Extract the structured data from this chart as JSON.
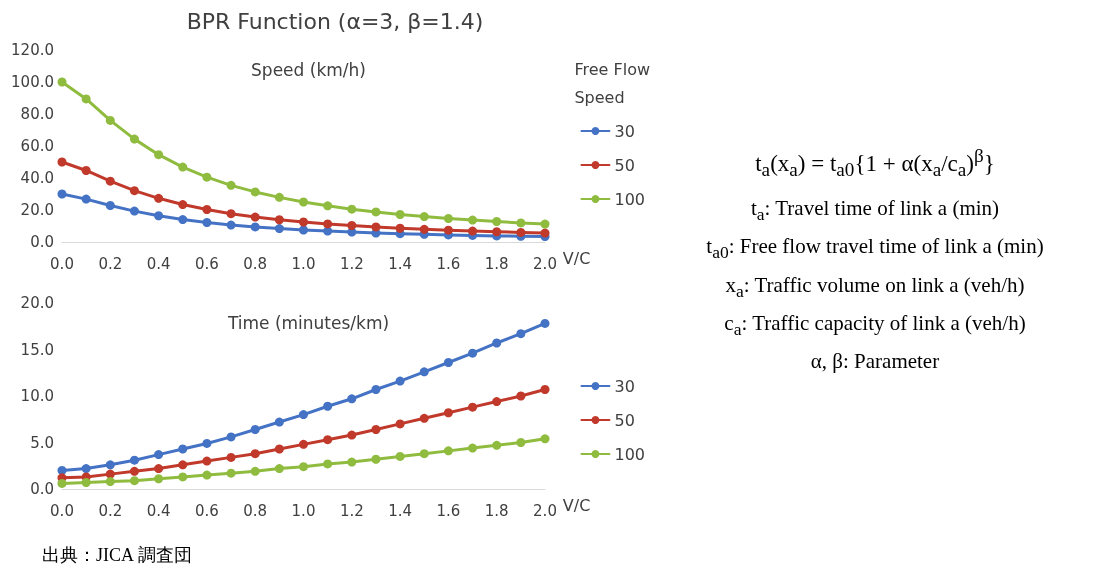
{
  "chart_data": [
    {
      "type": "line",
      "title": "BPR Function (α=3, β=1.4)",
      "subtitle": "Speed (km/h)",
      "xlabel": "V/C",
      "legend_title": "Free Flow Speed",
      "legend": "right",
      "marker": "circle",
      "grid": false,
      "x": [
        0,
        0.1,
        0.2,
        0.3,
        0.4,
        0.5,
        0.6,
        0.7,
        0.8,
        0.9,
        1.0,
        1.1,
        1.2,
        1.3,
        1.4,
        1.5,
        1.6,
        1.7,
        1.8,
        1.9,
        2.0
      ],
      "xlim": [
        0,
        2
      ],
      "xticks": [
        {
          "value": 0,
          "label": "0.0"
        },
        {
          "value": 0.2,
          "label": "0.2"
        },
        {
          "value": 0.4,
          "label": "0.4"
        },
        {
          "value": 0.6,
          "label": "0.6"
        },
        {
          "value": 0.8,
          "label": "0.8"
        },
        {
          "value": 1,
          "label": "1.0"
        },
        {
          "value": 1.2,
          "label": "1.2"
        },
        {
          "value": 1.4,
          "label": "1.4"
        },
        {
          "value": 1.6,
          "label": "1.6"
        },
        {
          "value": 1.8,
          "label": "1.8"
        },
        {
          "value": 2,
          "label": "2.0"
        }
      ],
      "ylim": [
        0,
        120
      ],
      "yticks": [
        {
          "value": 0,
          "label": "0.0"
        },
        {
          "value": 20,
          "label": "20.0"
        },
        {
          "value": 40,
          "label": "40.0"
        },
        {
          "value": 60,
          "label": "60.0"
        },
        {
          "value": 80,
          "label": "80.0"
        },
        {
          "value": 100,
          "label": "100.0"
        },
        {
          "value": 120,
          "label": "120.0"
        }
      ],
      "series": [
        {
          "name": "30",
          "color": "#4472c4",
          "values": [
            30,
            26.8,
            22.8,
            19.3,
            16.4,
            14.0,
            12.2,
            10.6,
            9.4,
            8.4,
            7.5,
            6.8,
            6.2,
            5.6,
            5.2,
            4.8,
            4.4,
            4.1,
            3.8,
            3.6,
            3.4
          ]
        },
        {
          "name": "50",
          "color": "#c0392b",
          "values": [
            50,
            44.7,
            38.0,
            32.1,
            27.3,
            23.4,
            20.3,
            17.7,
            15.6,
            13.9,
            12.5,
            11.3,
            10.3,
            9.4,
            8.6,
            7.9,
            7.4,
            6.8,
            6.4,
            6.0,
            5.6
          ]
        },
        {
          "name": "100",
          "color": "#8fbc3f",
          "values": [
            100,
            89.4,
            76.0,
            64.3,
            54.6,
            46.8,
            40.5,
            35.4,
            31.3,
            27.9,
            25.0,
            22.6,
            20.5,
            18.8,
            17.2,
            15.9,
            14.7,
            13.7,
            12.8,
            11.9,
            11.2
          ]
        }
      ]
    },
    {
      "type": "line",
      "title": "Time (minutes/km)",
      "xlabel": "V/C",
      "legend": "right",
      "marker": "circle",
      "grid": false,
      "annotations": [
        "出典：JICA 調査団"
      ],
      "x": [
        0,
        0.1,
        0.2,
        0.3,
        0.4,
        0.5,
        0.6,
        0.7,
        0.8,
        0.9,
        1.0,
        1.1,
        1.2,
        1.3,
        1.4,
        1.5,
        1.6,
        1.7,
        1.8,
        1.9,
        2.0
      ],
      "xlim": [
        0,
        2
      ],
      "xticks": [
        {
          "value": 0,
          "label": "0.0"
        },
        {
          "value": 0.2,
          "label": "0.2"
        },
        {
          "value": 0.4,
          "label": "0.4"
        },
        {
          "value": 0.6,
          "label": "0.6"
        },
        {
          "value": 0.8,
          "label": "0.8"
        },
        {
          "value": 1,
          "label": "1.0"
        },
        {
          "value": 1.2,
          "label": "1.2"
        },
        {
          "value": 1.4,
          "label": "1.4"
        },
        {
          "value": 1.6,
          "label": "1.6"
        },
        {
          "value": 1.8,
          "label": "1.8"
        },
        {
          "value": 2,
          "label": "2.0"
        }
      ],
      "ylim": [
        0,
        20
      ],
      "yticks": [
        {
          "value": 0,
          "label": "0.0"
        },
        {
          "value": 5,
          "label": "5.0"
        },
        {
          "value": 10,
          "label": "10.0"
        },
        {
          "value": 15,
          "label": "15.0"
        },
        {
          "value": 20,
          "label": "20.0"
        }
      ],
      "series": [
        {
          "name": "30",
          "color": "#4472c4",
          "values": [
            2,
            2.2,
            2.6,
            3.1,
            3.7,
            4.3,
            4.9,
            5.6,
            6.4,
            7.2,
            8.0,
            8.9,
            9.7,
            10.7,
            11.6,
            12.6,
            13.6,
            14.6,
            15.7,
            16.7,
            17.8
          ]
        },
        {
          "name": "50",
          "color": "#c0392b",
          "values": [
            1.2,
            1.3,
            1.6,
            1.9,
            2.2,
            2.6,
            3.0,
            3.4,
            3.8,
            4.3,
            4.8,
            5.3,
            5.8,
            6.4,
            7.0,
            7.6,
            8.2,
            8.8,
            9.4,
            10.0,
            10.7
          ]
        },
        {
          "name": "100",
          "color": "#8fbc3f",
          "values": [
            0.6,
            0.7,
            0.8,
            0.9,
            1.1,
            1.3,
            1.5,
            1.7,
            1.9,
            2.2,
            2.4,
            2.7,
            2.9,
            3.2,
            3.5,
            3.8,
            4.1,
            4.4,
            4.7,
            5.0,
            5.4
          ]
        }
      ]
    },
    {
      "type": "other",
      "annotations": [
        "t$_{a}$(x$_{a}$) = t$_{a0}${1 + α(x$_{a}$/c$_{a}$)$^{β}$}",
        "t$_{a}$: Travel time of link a (min)",
        "t$_{a0}$: Free flow travel time of link a (min)",
        "x$_{a}$:  Traffic volume on link a (veh/h)",
        "c$_{a}$:   Traffic capacity of link a (veh/h)",
        "α, β: Parameter"
      ]
    }
  ]
}
